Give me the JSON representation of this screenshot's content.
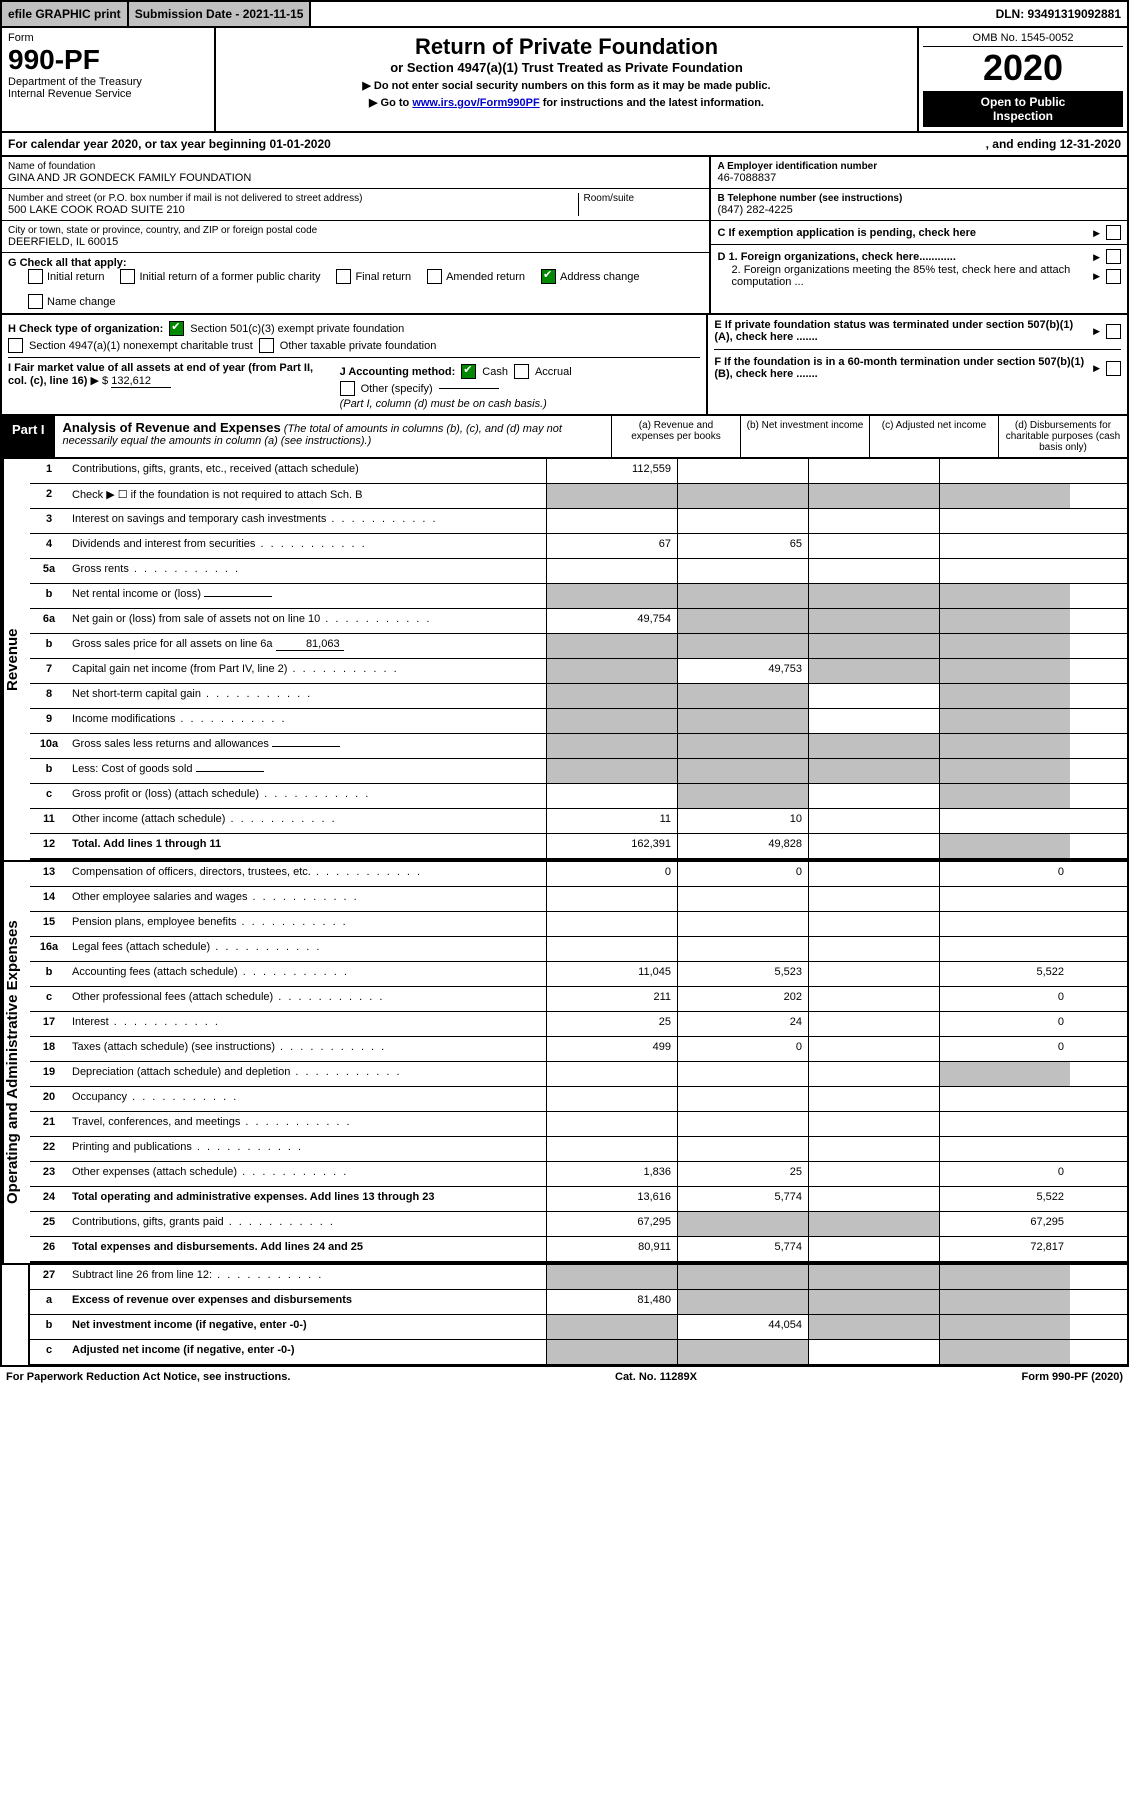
{
  "top": {
    "efile": "efile GRAPHIC print",
    "submission": "Submission Date - 2021-11-15",
    "dln": "DLN: 93491319092881"
  },
  "header": {
    "form_word": "Form",
    "form_name": "990-PF",
    "dept1": "Department of the Treasury",
    "dept2": "Internal Revenue Service",
    "title": "Return of Private Foundation",
    "subtitle": "or Section 4947(a)(1) Trust Treated as Private Foundation",
    "note1": "▶ Do not enter social security numbers on this form as it may be made public.",
    "note2_pre": "▶ Go to ",
    "note2_link": "www.irs.gov/Form990PF",
    "note2_post": " for instructions and the latest information.",
    "omb": "OMB No. 1545-0052",
    "year": "2020",
    "insp1": "Open to Public",
    "insp2": "Inspection"
  },
  "cal": {
    "left": "For calendar year 2020, or tax year beginning 01-01-2020",
    "right": ", and ending 12-31-2020"
  },
  "info": {
    "name_label": "Name of foundation",
    "name": "GINA AND JR GONDECK FAMILY FOUNDATION",
    "addr_label": "Number and street (or P.O. box number if mail is not delivered to street address)",
    "addr": "500 LAKE COOK ROAD SUITE 210",
    "room_label": "Room/suite",
    "city_label": "City or town, state or province, country, and ZIP or foreign postal code",
    "city": "DEERFIELD, IL  60015",
    "a_label": "A Employer identification number",
    "a_val": "46-7088837",
    "b_label": "B Telephone number (see instructions)",
    "b_val": "(847) 282-4225",
    "c_label": "C If exemption application is pending, check here",
    "d1": "D 1. Foreign organizations, check here............",
    "d2": "2. Foreign organizations meeting the 85% test, check here and attach computation ...",
    "e": "E  If private foundation status was terminated under section 507(b)(1)(A), check here .......",
    "f": "F  If the foundation is in a 60-month termination under section 507(b)(1)(B), check here .......",
    "g_label": "G Check all that apply:",
    "g_opts": [
      "Initial return",
      "Initial return of a former public charity",
      "Final return",
      "Amended return",
      "Address change",
      "Name change"
    ],
    "h_label": "H Check type of organization:",
    "h_opt1": "Section 501(c)(3) exempt private foundation",
    "h_opt2": "Section 4947(a)(1) nonexempt charitable trust",
    "h_opt3": "Other taxable private foundation",
    "i_label": "I Fair market value of all assets at end of year (from Part II, col. (c), line 16)",
    "i_arrow": "▶ $",
    "i_val": "132,612",
    "j_label": "J Accounting method:",
    "j_cash": "Cash",
    "j_accrual": "Accrual",
    "j_other": "Other (specify)",
    "j_note": "(Part I, column (d) must be on cash basis.)"
  },
  "part1": {
    "tab": "Part I",
    "title": "Analysis of Revenue and Expenses",
    "desc": " (The total of amounts in columns (b), (c), and (d) may not necessarily equal the amounts in column (a) (see instructions).)",
    "cols": {
      "a": "(a) Revenue and expenses per books",
      "b": "(b) Net investment income",
      "c": "(c) Adjusted net income",
      "d": "(d) Disbursements for charitable purposes (cash basis only)"
    }
  },
  "revenue_label": "Revenue",
  "ops_label": "Operating and Administrative Expenses",
  "rows": {
    "r1": {
      "n": "1",
      "label": "Contributions, gifts, grants, etc., received (attach schedule)",
      "a": "112,559",
      "b": "",
      "c": "",
      "d": ""
    },
    "r2": {
      "n": "2",
      "label": "Check ▶ ☐ if the foundation is not required to attach Sch. B",
      "nobox": true
    },
    "r3": {
      "n": "3",
      "label": "Interest on savings and temporary cash investments",
      "a": "",
      "b": "",
      "c": "",
      "d": ""
    },
    "r4": {
      "n": "4",
      "label": "Dividends and interest from securities",
      "a": "67",
      "b": "65",
      "c": "",
      "d": ""
    },
    "r5a": {
      "n": "5a",
      "label": "Gross rents",
      "a": "",
      "b": "",
      "c": "",
      "d": ""
    },
    "r5b": {
      "n": "b",
      "label": "Net rental income or (loss)",
      "inline": "",
      "nobox": true
    },
    "r6a": {
      "n": "6a",
      "label": "Net gain or (loss) from sale of assets not on line 10",
      "a": "49,754",
      "b": "",
      "c": "",
      "d": "",
      "b_shade": true,
      "c_shade": true,
      "d_shade": true
    },
    "r6b": {
      "n": "b",
      "label": "Gross sales price for all assets on line 6a",
      "inline": "81,063",
      "nobox": true
    },
    "r7": {
      "n": "7",
      "label": "Capital gain net income (from Part IV, line 2)",
      "a": "",
      "b": "49,753",
      "c": "",
      "d": "",
      "a_shade": true,
      "c_shade": true,
      "d_shade": true
    },
    "r8": {
      "n": "8",
      "label": "Net short-term capital gain",
      "a": "",
      "b": "",
      "c": "",
      "d": "",
      "a_shade": true,
      "b_shade": true,
      "d_shade": true
    },
    "r9": {
      "n": "9",
      "label": "Income modifications",
      "a": "",
      "b": "",
      "c": "",
      "d": "",
      "a_shade": true,
      "b_shade": true,
      "d_shade": true
    },
    "r10a": {
      "n": "10a",
      "label": "Gross sales less returns and allowances",
      "inline": "",
      "nobox": true
    },
    "r10b": {
      "n": "b",
      "label": "Less: Cost of goods sold",
      "inline": "",
      "nobox": true
    },
    "r10c": {
      "n": "c",
      "label": "Gross profit or (loss) (attach schedule)",
      "a": "",
      "b": "",
      "c": "",
      "d": "",
      "b_shade": true,
      "d_shade": true
    },
    "r11": {
      "n": "11",
      "label": "Other income (attach schedule)",
      "a": "11",
      "b": "10",
      "c": "",
      "d": ""
    },
    "r12": {
      "n": "12",
      "label": "Total. Add lines 1 through 11",
      "bold": true,
      "a": "162,391",
      "b": "49,828",
      "c": "",
      "d": "",
      "d_shade": true
    },
    "r13": {
      "n": "13",
      "label": "Compensation of officers, directors, trustees, etc.",
      "a": "0",
      "b": "0",
      "c": "",
      "d": "0"
    },
    "r14": {
      "n": "14",
      "label": "Other employee salaries and wages"
    },
    "r15": {
      "n": "15",
      "label": "Pension plans, employee benefits"
    },
    "r16a": {
      "n": "16a",
      "label": "Legal fees (attach schedule)"
    },
    "r16b": {
      "n": "b",
      "label": "Accounting fees (attach schedule)",
      "a": "11,045",
      "b": "5,523",
      "c": "",
      "d": "5,522"
    },
    "r16c": {
      "n": "c",
      "label": "Other professional fees (attach schedule)",
      "a": "211",
      "b": "202",
      "c": "",
      "d": "0"
    },
    "r17": {
      "n": "17",
      "label": "Interest",
      "a": "25",
      "b": "24",
      "c": "",
      "d": "0"
    },
    "r18": {
      "n": "18",
      "label": "Taxes (attach schedule) (see instructions)",
      "a": "499",
      "b": "0",
      "c": "",
      "d": "0"
    },
    "r19": {
      "n": "19",
      "label": "Depreciation (attach schedule) and depletion",
      "d_shade": true
    },
    "r20": {
      "n": "20",
      "label": "Occupancy"
    },
    "r21": {
      "n": "21",
      "label": "Travel, conferences, and meetings"
    },
    "r22": {
      "n": "22",
      "label": "Printing and publications"
    },
    "r23": {
      "n": "23",
      "label": "Other expenses (attach schedule)",
      "a": "1,836",
      "b": "25",
      "c": "",
      "d": "0"
    },
    "r24": {
      "n": "24",
      "label": "Total operating and administrative expenses. Add lines 13 through 23",
      "bold": true,
      "a": "13,616",
      "b": "5,774",
      "c": "",
      "d": "5,522"
    },
    "r25": {
      "n": "25",
      "label": "Contributions, gifts, grants paid",
      "a": "67,295",
      "b": "",
      "c": "",
      "d": "67,295",
      "b_shade": true,
      "c_shade": true
    },
    "r26": {
      "n": "26",
      "label": "Total expenses and disbursements. Add lines 24 and 25",
      "bold": true,
      "a": "80,911",
      "b": "5,774",
      "c": "",
      "d": "72,817"
    },
    "r27": {
      "n": "27",
      "label": "Subtract line 26 from line 12:",
      "a_shade": true,
      "b_shade": true,
      "c_shade": true,
      "d_shade": true
    },
    "r27a": {
      "n": "a",
      "label": "Excess of revenue over expenses and disbursements",
      "bold": true,
      "a": "81,480",
      "b": "",
      "c": "",
      "d": "",
      "b_shade": true,
      "c_shade": true,
      "d_shade": true
    },
    "r27b": {
      "n": "b",
      "label": "Net investment income (if negative, enter -0-)",
      "bold": true,
      "a": "",
      "b": "44,054",
      "c": "",
      "d": "",
      "a_shade": true,
      "c_shade": true,
      "d_shade": true
    },
    "r27c": {
      "n": "c",
      "label": "Adjusted net income (if negative, enter -0-)",
      "bold": true,
      "a": "",
      "b": "",
      "c": "",
      "d": "",
      "a_shade": true,
      "b_shade": true,
      "d_shade": true
    }
  },
  "footer": {
    "left": "For Paperwork Reduction Act Notice, see instructions.",
    "mid": "Cat. No. 11289X",
    "right": "Form 990-PF (2020)"
  }
}
